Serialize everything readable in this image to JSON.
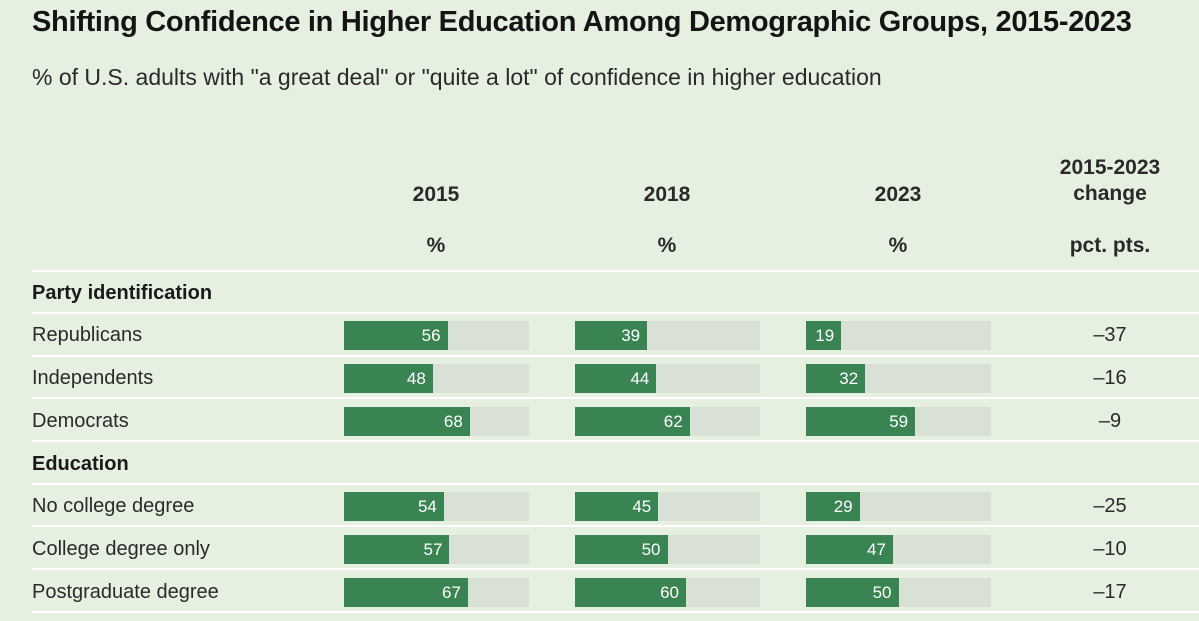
{
  "header": {
    "title": "Shifting Confidence in Higher Education Among Demographic Groups, 2015-2023",
    "subtitle": "% of U.S. adults with \"a great deal\" or \"quite a lot\" of confidence in higher education"
  },
  "columns": {
    "y2015": {
      "label": "2015",
      "unit": "%"
    },
    "y2018": {
      "label": "2018",
      "unit": "%"
    },
    "y2023": {
      "label": "2023",
      "unit": "%"
    },
    "change": {
      "label_line1": "2015-2023",
      "label_line2": "change",
      "unit": "pct. pts."
    }
  },
  "sections": {
    "party": {
      "label": "Party identification"
    },
    "education": {
      "label": "Education"
    }
  },
  "rows": [
    {
      "label": "Republicans",
      "change": "–37"
    },
    {
      "label": "Independents",
      "change": "–16"
    },
    {
      "label": "Democrats",
      "change": "–9"
    },
    {
      "label": "No college degree",
      "change": "–25"
    },
    {
      "label": "College degree only",
      "change": "–10"
    },
    {
      "label": "Postgraduate degree",
      "change": "–17"
    }
  ],
  "colors": {
    "bar": "#3a8353",
    "track": "#d9e0d6",
    "background": "#e5f0e1"
  },
  "chart_data": {
    "type": "bar",
    "title": "Shifting Confidence in Higher Education Among Demographic Groups, 2015-2023",
    "subtitle": "% of U.S. adults with \"a great deal\" or \"quite a lot\" of confidence in higher education",
    "categories": [
      "Republicans",
      "Independents",
      "Democrats",
      "No college degree",
      "College degree only",
      "Postgraduate degree"
    ],
    "groups": [
      {
        "name": "Party identification",
        "categories": [
          "Republicans",
          "Independents",
          "Democrats"
        ]
      },
      {
        "name": "Education",
        "categories": [
          "No college degree",
          "College degree only",
          "Postgraduate degree"
        ]
      }
    ],
    "series": [
      {
        "name": "2015",
        "values": [
          56,
          48,
          68,
          54,
          57,
          67
        ]
      },
      {
        "name": "2018",
        "values": [
          39,
          44,
          62,
          45,
          50,
          60
        ]
      },
      {
        "name": "2023",
        "values": [
          19,
          32,
          59,
          29,
          47,
          50
        ]
      }
    ],
    "change_2015_2023": [
      -37,
      -16,
      -9,
      -25,
      -10,
      -17
    ],
    "ylim": [
      0,
      100
    ],
    "unit": "%"
  }
}
